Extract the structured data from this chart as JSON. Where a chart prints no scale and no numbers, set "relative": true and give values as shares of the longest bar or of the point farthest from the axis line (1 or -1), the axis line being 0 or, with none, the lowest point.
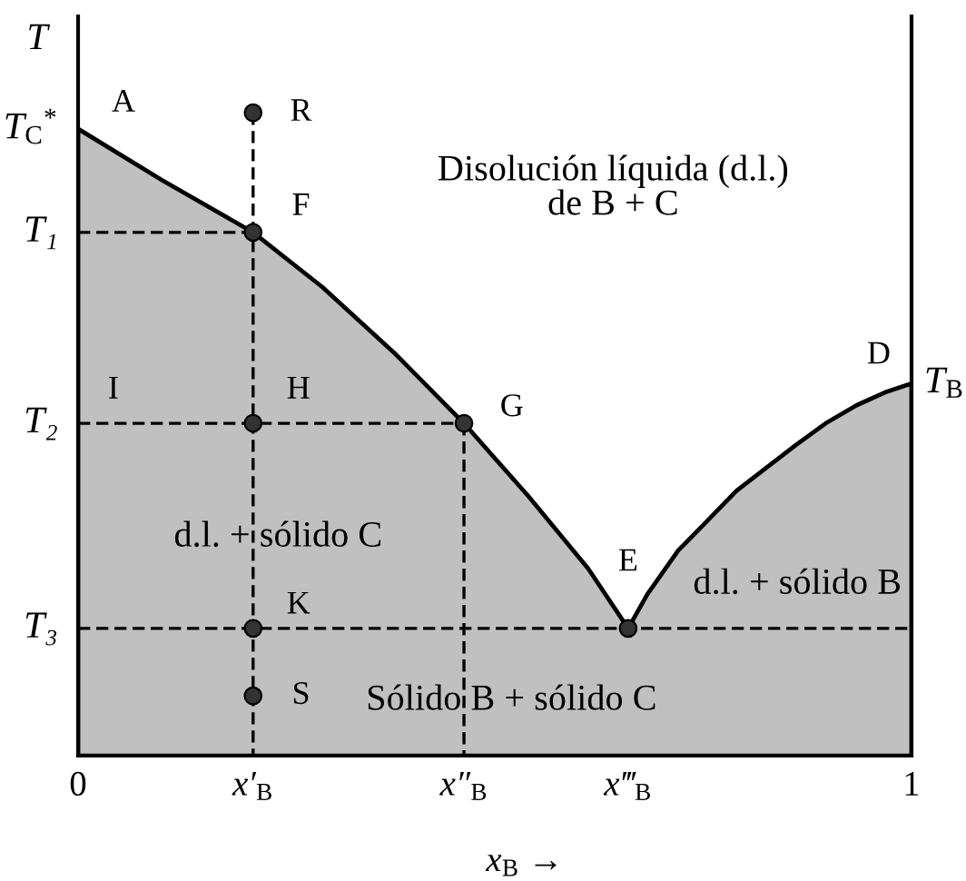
{
  "chart_data": {
    "type": "line",
    "relative": true,
    "xlabel": "x$_{B}$ →",
    "ylabel": "T",
    "xlim": [
      0,
      1
    ],
    "xticks": [
      0,
      {
        "value": 0.21,
        "label": "x′$_{B}$"
      },
      {
        "value": 0.463,
        "label": "x″$_{B}$"
      },
      {
        "value": 0.66,
        "label": "x‴$_{B}$"
      },
      1
    ],
    "series": [
      {
        "type": "area",
        "color": "#c0c0c0",
        "x": [
          0,
          0.101,
          0.21,
          0.293,
          0.379,
          0.463,
          0.54,
          0.612,
          0.66,
          0.683,
          0.72,
          0.754,
          0.79,
          0.827,
          0.861,
          0.897,
          0.934,
          0.968,
          1
        ],
        "values": [
          0.975,
          0.895,
          0.814,
          0.729,
          0.627,
          0.517,
          0.404,
          0.291,
          0.198,
          0.251,
          0.319,
          0.364,
          0.412,
          0.449,
          0.483,
          0.517,
          0.545,
          0.565,
          0.579
        ]
      },
      {
        "color": "#000000",
        "line_style": "dashed",
        "x": [
          0.21,
          0.21
        ],
        "values": [
          1,
          0
        ]
      },
      {
        "color": "#000000",
        "line_style": "dashed",
        "x": [
          0,
          0.21
        ],
        "values": [
          0.814,
          0.814
        ]
      },
      {
        "color": "#000000",
        "line_style": "dashed",
        "x": [
          0,
          0.463
        ],
        "values": [
          0.517,
          0.517
        ]
      },
      {
        "color": "#000000",
        "line_style": "dashed",
        "x": [
          0.463,
          0.463
        ],
        "values": [
          0.517,
          0
        ]
      },
      {
        "color": "#000000",
        "line_style": "dashed",
        "x": [
          0,
          1
        ],
        "values": [
          0.198,
          0.198
        ]
      },
      {
        "type": "scatter",
        "color": "#333333",
        "marker": "circle",
        "x": [
          0.21,
          0.21,
          0.21,
          0.463,
          0.21,
          0.21,
          0.66
        ],
        "values": [
          1,
          0.814,
          0.517,
          0.517,
          0.198,
          0.093,
          0.198
        ]
      }
    ],
    "annotations": [
      {
        "text": "A",
        "x": 0,
        "y": 0.975
      },
      {
        "text": "R",
        "x": 0.21,
        "y": 1
      },
      {
        "text": "F",
        "x": 0.21,
        "y": 0.814
      },
      {
        "text": "I",
        "x": 0,
        "y": 0.517
      },
      {
        "text": "H",
        "x": 0.21,
        "y": 0.517
      },
      {
        "text": "G",
        "x": 0.463,
        "y": 0.517
      },
      {
        "text": "E",
        "x": 0.66,
        "y": 0.198
      },
      {
        "text": "K",
        "x": 0.21,
        "y": 0.198
      },
      {
        "text": "S",
        "x": 0.21,
        "y": 0.093
      },
      {
        "text": "D",
        "x": 1,
        "y": 0.579
      },
      {
        "text": "T$_{C}$$^{*}$",
        "x": 0,
        "y": 0.975
      },
      {
        "text": "T₁",
        "x": 0,
        "y": 0.814
      },
      {
        "text": "T₂",
        "x": 0,
        "y": 0.517
      },
      {
        "text": "T₃",
        "x": 0,
        "y": 0.198
      },
      {
        "text": "T$_{B}$",
        "x": 1,
        "y": 0.579
      },
      "Disolución líquida (d.l.)\nde B + C",
      "d.l. + sólido C",
      "d.l. + sólido B",
      "Sólido B + sólido C"
    ]
  }
}
